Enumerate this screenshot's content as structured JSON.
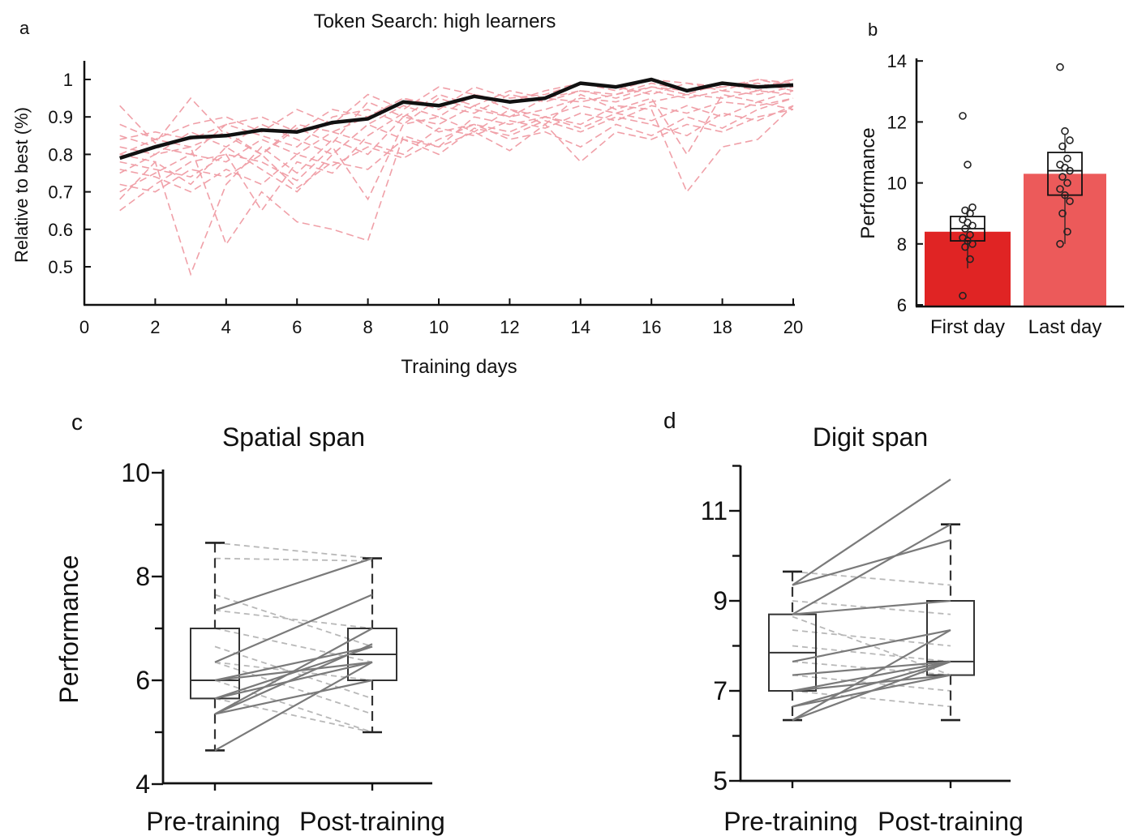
{
  "chart_data": [
    {
      "panel": "a",
      "type": "line",
      "title": "Token Search: high learners",
      "xlabel": "Training days",
      "ylabel": "Relative to best (%)",
      "xlim": [
        0,
        20
      ],
      "ylim": [
        0.4,
        1.05
      ],
      "xticks": [
        "0",
        "2",
        "4",
        "6",
        "8",
        "10",
        "12",
        "14",
        "16",
        "18",
        "20"
      ],
      "yticks": [
        "0.5",
        "0.6",
        "0.7",
        "0.8",
        "0.9",
        "1"
      ],
      "grid": false,
      "mean_series": {
        "x": [
          1,
          2,
          3,
          4,
          5,
          6,
          7,
          8,
          9,
          10,
          11,
          12,
          13,
          14,
          15,
          16,
          17,
          18,
          19,
          20
        ],
        "y": [
          0.79,
          0.82,
          0.845,
          0.85,
          0.865,
          0.86,
          0.885,
          0.895,
          0.94,
          0.93,
          0.955,
          0.94,
          0.95,
          0.99,
          0.98,
          1.0,
          0.97,
          0.99,
          0.98,
          0.985
        ]
      },
      "individual_series": [
        [
          0.93,
          0.83,
          0.95,
          0.85,
          0.8,
          0.88,
          0.86,
          0.9,
          0.95,
          0.92,
          0.98,
          0.95,
          0.96,
          0.99,
          0.97,
          1.0,
          0.99,
          0.98,
          0.99,
          0.97
        ],
        [
          0.8,
          0.78,
          0.48,
          0.72,
          0.82,
          0.75,
          0.84,
          0.8,
          0.9,
          0.88,
          0.93,
          0.9,
          0.92,
          0.95,
          0.94,
          0.97,
          0.95,
          0.97,
          0.96,
          0.98
        ],
        [
          0.75,
          0.8,
          0.82,
          0.56,
          0.7,
          0.62,
          0.6,
          0.57,
          0.85,
          0.82,
          0.9,
          0.88,
          0.9,
          0.93,
          0.91,
          0.94,
          0.96,
          0.95,
          0.97,
          0.96
        ],
        [
          0.65,
          0.72,
          0.78,
          0.8,
          0.78,
          0.73,
          0.82,
          0.68,
          0.88,
          0.9,
          0.86,
          0.92,
          0.9,
          0.88,
          0.93,
          0.92,
          0.7,
          0.82,
          0.84,
          0.93
        ],
        [
          0.85,
          0.82,
          0.8,
          0.88,
          0.85,
          0.82,
          0.9,
          0.92,
          0.88,
          0.95,
          0.92,
          0.9,
          0.95,
          0.97,
          0.96,
          0.98,
          0.97,
          0.99,
          0.98,
          1.0
        ],
        [
          0.78,
          0.76,
          0.74,
          0.8,
          0.65,
          0.78,
          0.75,
          0.85,
          0.91,
          0.86,
          0.88,
          0.84,
          0.86,
          0.82,
          0.88,
          0.85,
          0.9,
          0.87,
          0.92,
          0.95
        ],
        [
          0.82,
          0.8,
          0.86,
          0.82,
          0.88,
          0.84,
          0.8,
          0.88,
          0.93,
          0.9,
          0.96,
          0.92,
          0.88,
          0.96,
          0.92,
          0.95,
          0.8,
          0.96,
          0.94,
          0.97
        ],
        [
          0.7,
          0.75,
          0.8,
          0.78,
          0.84,
          0.8,
          0.86,
          0.83,
          0.8,
          0.87,
          0.85,
          0.89,
          0.87,
          0.91,
          0.89,
          0.93,
          0.91,
          0.94,
          0.93,
          0.95
        ],
        [
          0.88,
          0.84,
          0.82,
          0.86,
          0.8,
          0.87,
          0.83,
          0.94,
          0.9,
          0.96,
          0.93,
          0.97,
          0.95,
          0.94,
          0.96,
          0.99,
          0.97,
          0.98,
          1.0,
          0.99
        ],
        [
          0.72,
          0.7,
          0.76,
          0.74,
          0.8,
          0.71,
          0.78,
          0.76,
          0.84,
          0.82,
          0.86,
          0.81,
          0.88,
          0.78,
          0.86,
          0.84,
          0.88,
          0.86,
          0.9,
          0.92
        ],
        [
          0.8,
          0.84,
          0.88,
          0.9,
          0.86,
          0.92,
          0.88,
          0.96,
          0.92,
          0.98,
          0.96,
          0.94,
          0.97,
          0.99,
          0.98,
          0.96,
          0.99,
          0.97,
          1.0,
          0.98
        ],
        [
          0.76,
          0.74,
          0.7,
          0.76,
          0.72,
          0.8,
          0.77,
          0.82,
          0.79,
          0.84,
          0.88,
          0.86,
          0.9,
          0.87,
          0.91,
          0.89,
          0.93,
          0.9,
          0.94,
          0.92
        ],
        [
          0.68,
          0.78,
          0.72,
          0.82,
          0.76,
          0.7,
          0.8,
          0.88,
          0.84,
          0.8,
          0.87,
          0.85,
          0.89,
          0.86,
          0.9,
          0.88,
          0.85,
          0.91,
          0.89,
          0.93
        ],
        [
          0.84,
          0.86,
          0.84,
          0.88,
          0.9,
          0.86,
          0.92,
          0.9,
          0.95,
          0.93,
          0.91,
          0.96,
          0.94,
          0.97,
          0.95,
          0.98,
          0.96,
          0.99,
          0.97,
          1.0
        ]
      ],
      "colors": {
        "mean": "#111111",
        "individual": "#f0a0a8"
      }
    },
    {
      "panel": "b",
      "type": "bar",
      "categories": [
        "First day",
        "Last day"
      ],
      "values": [
        8.4,
        10.3
      ],
      "ylabel": "Performance",
      "ylim": [
        6,
        14
      ],
      "yticks": [
        "6",
        "8",
        "10",
        "12",
        "14"
      ],
      "box": [
        {
          "q1": 8.1,
          "median": 8.5,
          "q3": 8.9,
          "whisker_low": 7.2,
          "whisker_high": 9.2
        },
        {
          "q1": 9.6,
          "median": 10.4,
          "q3": 11.0,
          "whisker_low": 8.0,
          "whisker_high": 11.6
        }
      ],
      "points": [
        [
          12.2,
          10.6,
          9.2,
          9.1,
          9.0,
          8.8,
          8.7,
          8.6,
          8.5,
          8.3,
          8.2,
          8.1,
          8.0,
          7.9,
          7.5,
          6.3
        ],
        [
          13.8,
          11.7,
          11.4,
          11.2,
          10.8,
          10.6,
          10.5,
          10.4,
          10.2,
          10.0,
          9.8,
          9.6,
          9.4,
          9.0,
          8.4,
          8.0
        ]
      ],
      "colors": {
        "first": "#e02424",
        "last": "#ec5a5a"
      }
    },
    {
      "panel": "c",
      "type": "line",
      "title": "Spatial span",
      "ylabel": "Performance",
      "categories": [
        "Pre-training",
        "Post-training"
      ],
      "ylim": [
        4,
        10
      ],
      "yticks": [
        "4",
        "6",
        "8",
        "10"
      ],
      "box": [
        {
          "q1": 5.65,
          "median": 6.0,
          "q3": 7.0,
          "whisker_low": 4.65,
          "whisker_high": 8.65
        },
        {
          "q1": 6.0,
          "median": 6.5,
          "q3": 7.0,
          "whisker_low": 5.0,
          "whisker_high": 8.35
        }
      ],
      "increase_pairs": [
        [
          7.35,
          8.35
        ],
        [
          6.35,
          7.65
        ],
        [
          6.0,
          6.65
        ],
        [
          5.65,
          6.35
        ],
        [
          5.35,
          6.7
        ],
        [
          5.35,
          6.0
        ],
        [
          5.35,
          7.0
        ],
        [
          4.65,
          6.35
        ],
        [
          6.0,
          6.35
        ],
        [
          5.65,
          6.65
        ]
      ],
      "decrease_pairs": [
        [
          8.65,
          8.35
        ],
        [
          8.35,
          8.3
        ],
        [
          7.65,
          6.65
        ],
        [
          7.35,
          7.0
        ],
        [
          7.0,
          6.35
        ],
        [
          6.65,
          5.65
        ],
        [
          6.35,
          5.35
        ],
        [
          6.0,
          5.0
        ],
        [
          5.65,
          5.0
        ],
        [
          6.35,
          6.0
        ]
      ]
    },
    {
      "panel": "d",
      "type": "line",
      "title": "Digit span",
      "categories": [
        "Pre-training",
        "Post-training"
      ],
      "ylim": [
        5,
        12
      ],
      "yticks": [
        "5",
        "7",
        "9",
        "11"
      ],
      "box": [
        {
          "q1": 7.0,
          "median": 7.85,
          "q3": 8.7,
          "whisker_low": 6.35,
          "whisker_high": 9.65
        },
        {
          "q1": 7.35,
          "median": 7.65,
          "q3": 9.0,
          "whisker_low": 6.35,
          "whisker_high": 10.7
        }
      ],
      "increase_pairs": [
        [
          9.35,
          11.7
        ],
        [
          8.7,
          10.7
        ],
        [
          9.35,
          10.35
        ],
        [
          8.7,
          9.0
        ],
        [
          7.65,
          8.35
        ],
        [
          7.35,
          7.65
        ],
        [
          7.0,
          7.65
        ],
        [
          6.65,
          7.35
        ],
        [
          6.35,
          8.35
        ],
        [
          6.65,
          7.65
        ],
        [
          7.0,
          7.35
        ],
        [
          6.35,
          7.65
        ]
      ],
      "decrease_pairs": [
        [
          9.65,
          9.35
        ],
        [
          9.0,
          8.7
        ],
        [
          8.35,
          8.0
        ],
        [
          8.0,
          7.65
        ],
        [
          7.65,
          7.35
        ],
        [
          7.35,
          7.0
        ],
        [
          7.0,
          6.65
        ],
        [
          8.65,
          7.35
        ]
      ]
    }
  ],
  "panel_labels": {
    "a": "a",
    "b": "b",
    "c": "c",
    "d": "d"
  }
}
